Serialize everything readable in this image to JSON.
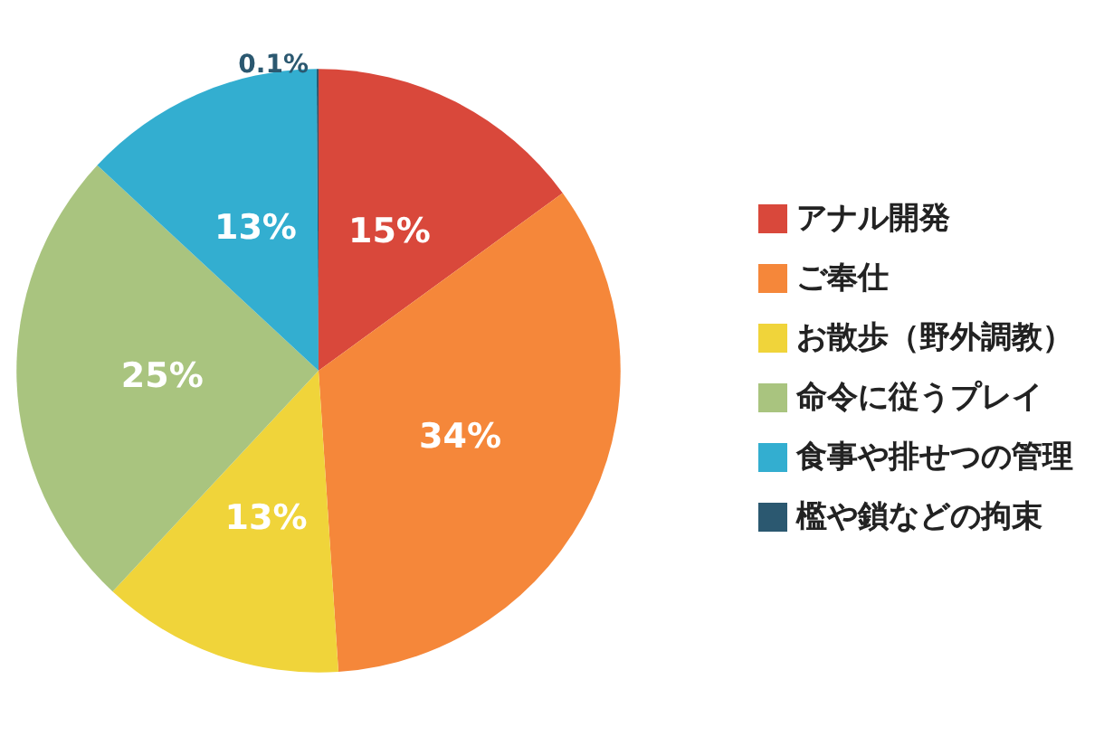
{
  "chart_data": {
    "type": "pie",
    "categories": [
      "アナル開発",
      "ご奉仕",
      "お散歩（野外調教）",
      "命令に従うプレイ",
      "食事や排せつの管理",
      "檻や鎖などの拘束"
    ],
    "values": [
      15,
      34,
      13,
      25,
      13,
      0.1
    ],
    "colors": [
      "#d9483b",
      "#f5873a",
      "#f0d43a",
      "#a9c47f",
      "#33aed0",
      "#2b5870"
    ],
    "value_labels": [
      "15%",
      "34%",
      "13%",
      "25%",
      "13%",
      "0.1%"
    ],
    "legend": "right"
  }
}
